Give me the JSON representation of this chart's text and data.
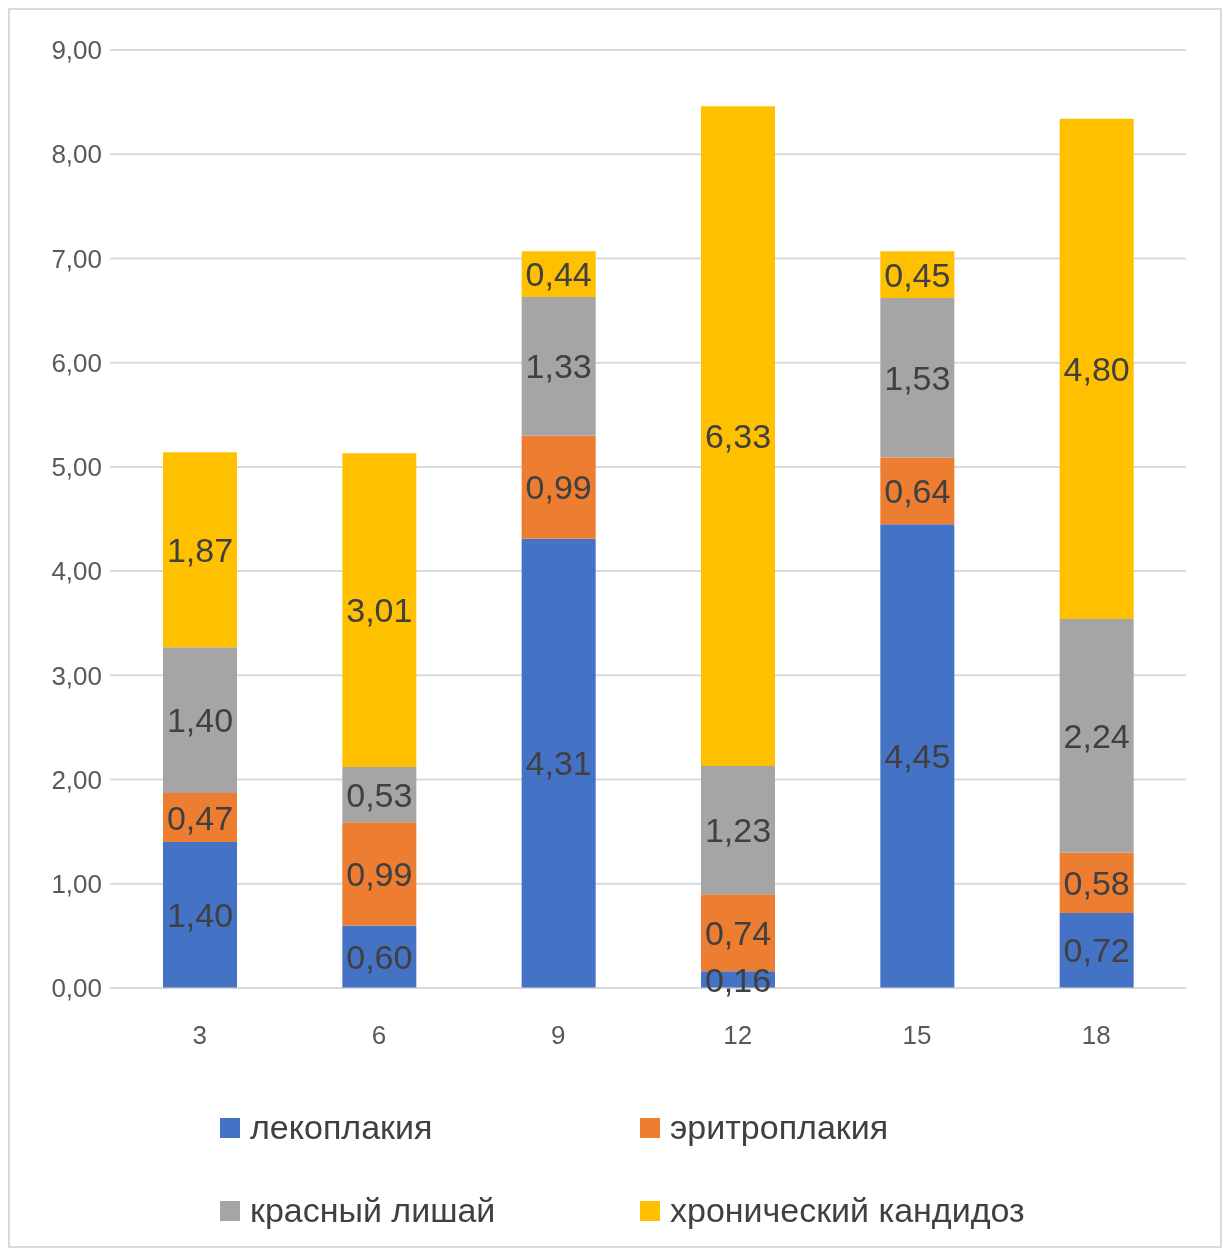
{
  "chart_data": {
    "type": "bar",
    "stacked": true,
    "categories": [
      "3",
      "6",
      "9",
      "12",
      "15",
      "18"
    ],
    "series": [
      {
        "name": "лекоплакия",
        "color": "#4472c4",
        "values": [
          1.4,
          0.6,
          4.31,
          0.16,
          4.45,
          0.72
        ],
        "value_labels": [
          "1,40",
          "0,60",
          "4,31",
          "0,16",
          "4,45",
          "0,72"
        ]
      },
      {
        "name": "эритроплакия",
        "color": "#ed7d31",
        "values": [
          0.47,
          0.99,
          0.99,
          0.74,
          0.64,
          0.58
        ],
        "value_labels": [
          "0,47",
          "0,99",
          "0,99",
          "0,74",
          "0,64",
          "0,58"
        ]
      },
      {
        "name": "красный лишай",
        "color": "#a5a5a5",
        "values": [
          1.4,
          0.53,
          1.33,
          1.23,
          1.53,
          2.24
        ],
        "value_labels": [
          "1,40",
          "0,53",
          "1,33",
          "1,23",
          "1,53",
          "2,24"
        ]
      },
      {
        "name": "хронический кандидоз",
        "color": "#ffc000",
        "values": [
          1.87,
          3.01,
          0.44,
          6.33,
          0.45,
          4.8
        ],
        "value_labels": [
          "1,87",
          "3,01",
          "0,44",
          "6,33",
          "0,45",
          "4,80"
        ]
      }
    ],
    "ylim": [
      0,
      9
    ],
    "yticks": [
      {
        "value": 0,
        "label": "0,00"
      },
      {
        "value": 1,
        "label": "1,00"
      },
      {
        "value": 2,
        "label": "2,00"
      },
      {
        "value": 3,
        "label": "3,00"
      },
      {
        "value": 4,
        "label": "4,00"
      },
      {
        "value": 5,
        "label": "5,00"
      },
      {
        "value": 6,
        "label": "6,00"
      },
      {
        "value": 7,
        "label": "7,00"
      },
      {
        "value": 8,
        "label": "8,00"
      },
      {
        "value": 9,
        "label": "9,00"
      }
    ],
    "grid": "y",
    "legend": "bottom"
  }
}
